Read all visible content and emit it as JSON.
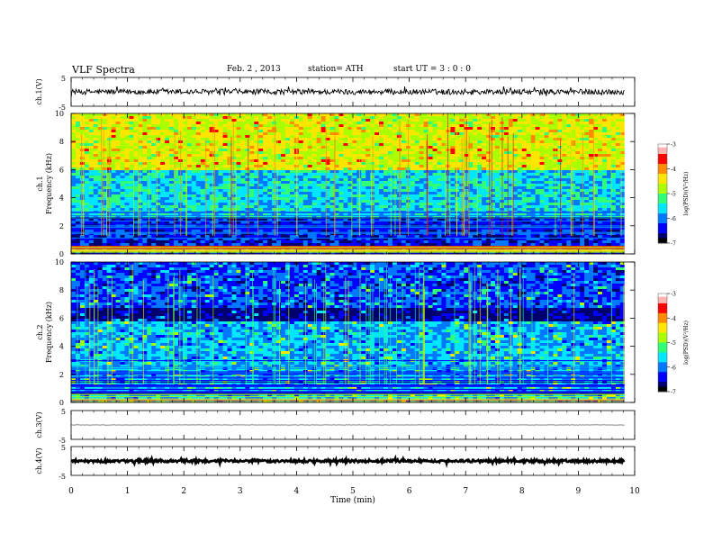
{
  "header": {
    "title": "VLF  Spectra",
    "date": "Feb. 2  , 2013",
    "station": "station= ATH",
    "start_ut": "start  UT  =   3  : 0  : 0"
  },
  "chart_data": [
    {
      "type": "line",
      "name": "ch1-waveform",
      "ylabel": "ch.1(V)",
      "ylim": [
        -5,
        5
      ],
      "yticks": [
        "5",
        "-5"
      ],
      "xlim": [
        0,
        10
      ],
      "data_end_min": 9.82,
      "approx_level": 0,
      "approx_amplitude": 1.2,
      "grid": false
    },
    {
      "type": "heatmap",
      "name": "ch1-spectrogram",
      "ylabel": [
        "ch.1",
        "Frequency  (kHz)"
      ],
      "ylim": [
        0,
        10
      ],
      "yticks": [
        "0",
        "2",
        "4",
        "6",
        "8",
        "10"
      ],
      "xlim": [
        0,
        10
      ],
      "data_end_min": 9.82,
      "colorbar": {
        "label": "log(PSD)(V²/Hz)",
        "range": [
          -7,
          -3
        ],
        "ticks": [
          "-3",
          "-4",
          "-5",
          "-6",
          "-7"
        ]
      },
      "approx_log_psd_by_band": [
        {
          "f_khz": [
            6,
            10
          ],
          "log_psd": -4.6
        },
        {
          "f_khz": [
            2.5,
            6
          ],
          "log_psd": -5.6
        },
        {
          "f_khz": [
            0,
            2.5
          ],
          "log_psd": -6.4
        }
      ]
    },
    {
      "type": "heatmap",
      "name": "ch2-spectrogram",
      "ylabel": [
        "ch.2",
        "Frequency  (kHz)"
      ],
      "ylim": [
        0,
        10
      ],
      "yticks": [
        "0",
        "2",
        "4",
        "6",
        "8",
        "10"
      ],
      "xlim": [
        0,
        10
      ],
      "data_end_min": 9.82,
      "colorbar": {
        "label": "log(PSD)(V²/Hz)",
        "range": [
          -7,
          -3
        ],
        "ticks": [
          "-3",
          "-4",
          "-5",
          "-6",
          "-7"
        ]
      },
      "approx_log_psd_by_band": [
        {
          "f_khz": [
            6.8,
            10
          ],
          "log_psd": -6.2
        },
        {
          "f_khz": [
            5.8,
            6.8
          ],
          "log_psd": -6.8
        },
        {
          "f_khz": [
            0,
            5.8
          ],
          "log_psd": -5.8
        }
      ]
    },
    {
      "type": "line",
      "name": "ch3-waveform",
      "ylabel": "ch.3(V)",
      "ylim": [
        -5,
        5
      ],
      "yticks": [
        "5",
        "-5"
      ],
      "xlim": [
        0,
        10
      ],
      "data_end_min": 9.82,
      "approx_level": 0,
      "approx_amplitude": 0.05
    },
    {
      "type": "line",
      "name": "ch4-waveform",
      "ylabel": "ch.4(V)",
      "ylim": [
        -5,
        5
      ],
      "yticks": [
        "5",
        "-5"
      ],
      "xlim": [
        0,
        10
      ],
      "data_end_min": 9.82,
      "approx_level": 0,
      "approx_amplitude": 0.6
    }
  ],
  "xaxis": {
    "label": "Time  (min)",
    "ticks": [
      "0",
      "1",
      "2",
      "3",
      "4",
      "5",
      "6",
      "7",
      "8",
      "9",
      "10"
    ]
  },
  "colors": {
    "colormap": [
      "#000000",
      "#00006e",
      "#0000ff",
      "#0078ff",
      "#00e6ff",
      "#32ff78",
      "#aaff00",
      "#ffe600",
      "#ff8c00",
      "#ff0000",
      "#ffb4b4",
      "#ffffff"
    ]
  }
}
